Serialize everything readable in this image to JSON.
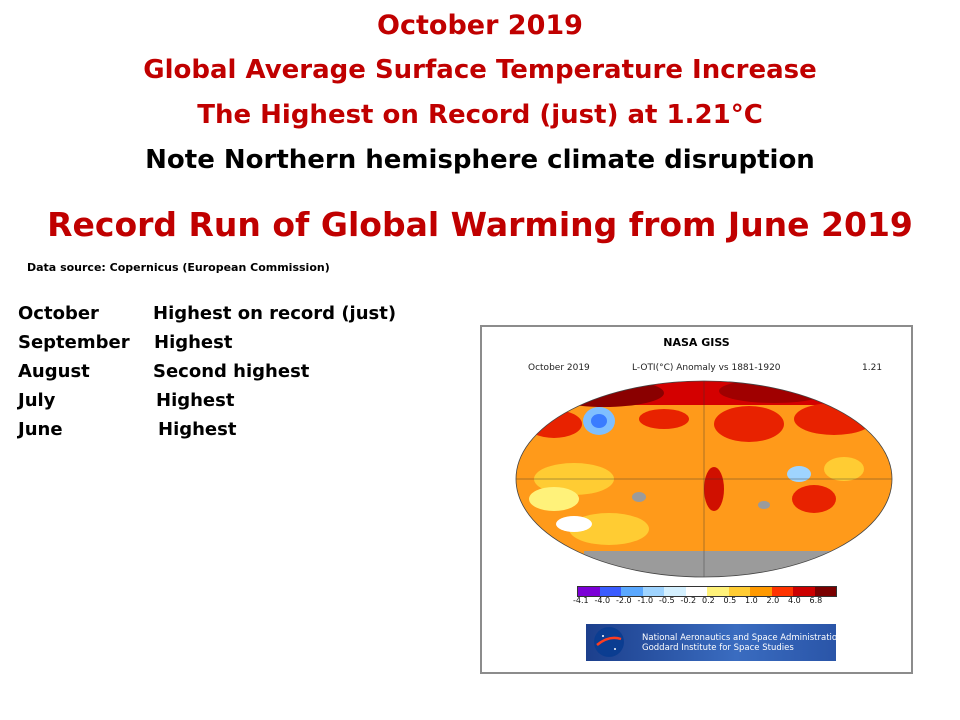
{
  "titles": {
    "line1": "October 2019",
    "line2": "Global Average Surface Temperature Increase",
    "line3": "The Highest on Record (just) at 1.21°C",
    "line4": "Note Northern hemisphere climate disruption",
    "headline": "Record Run of Global Warming from June 2019"
  },
  "data_source": "Data source: Copernicus (European Commission)",
  "records": [
    {
      "month": "October",
      "status": "Highest on record (just)"
    },
    {
      "month": "September",
      "status": "Highest"
    },
    {
      "month": "August",
      "status": "Second highest"
    },
    {
      "month": "July",
      "status": "Highest"
    },
    {
      "month": "June",
      "status": "Highest"
    }
  ],
  "figure": {
    "title": "NASA GISS",
    "period": "October 2019",
    "metric": "L-OTI(°C) Anomaly vs 1881-1920",
    "value": "1.21",
    "colorbar_ticks": [
      "-4.1",
      "-4.0",
      "-2.0",
      "-1.0",
      "-0.5",
      "-0.2",
      "0.2",
      "0.5",
      "1.0",
      "2.0",
      "4.0",
      "6.8"
    ],
    "colorbar_colors": [
      "#7b00d6",
      "#3a5cff",
      "#5aa8ff",
      "#9fd4ff",
      "#d4f0ff",
      "#ffffff",
      "#fff27a",
      "#ffcc33",
      "#ff9900",
      "#ff3300",
      "#cc0000",
      "#7a0000"
    ],
    "agency_line1": "National Aeronautics and Space Administration",
    "agency_line2": "Goddard Institute for Space Studies"
  }
}
